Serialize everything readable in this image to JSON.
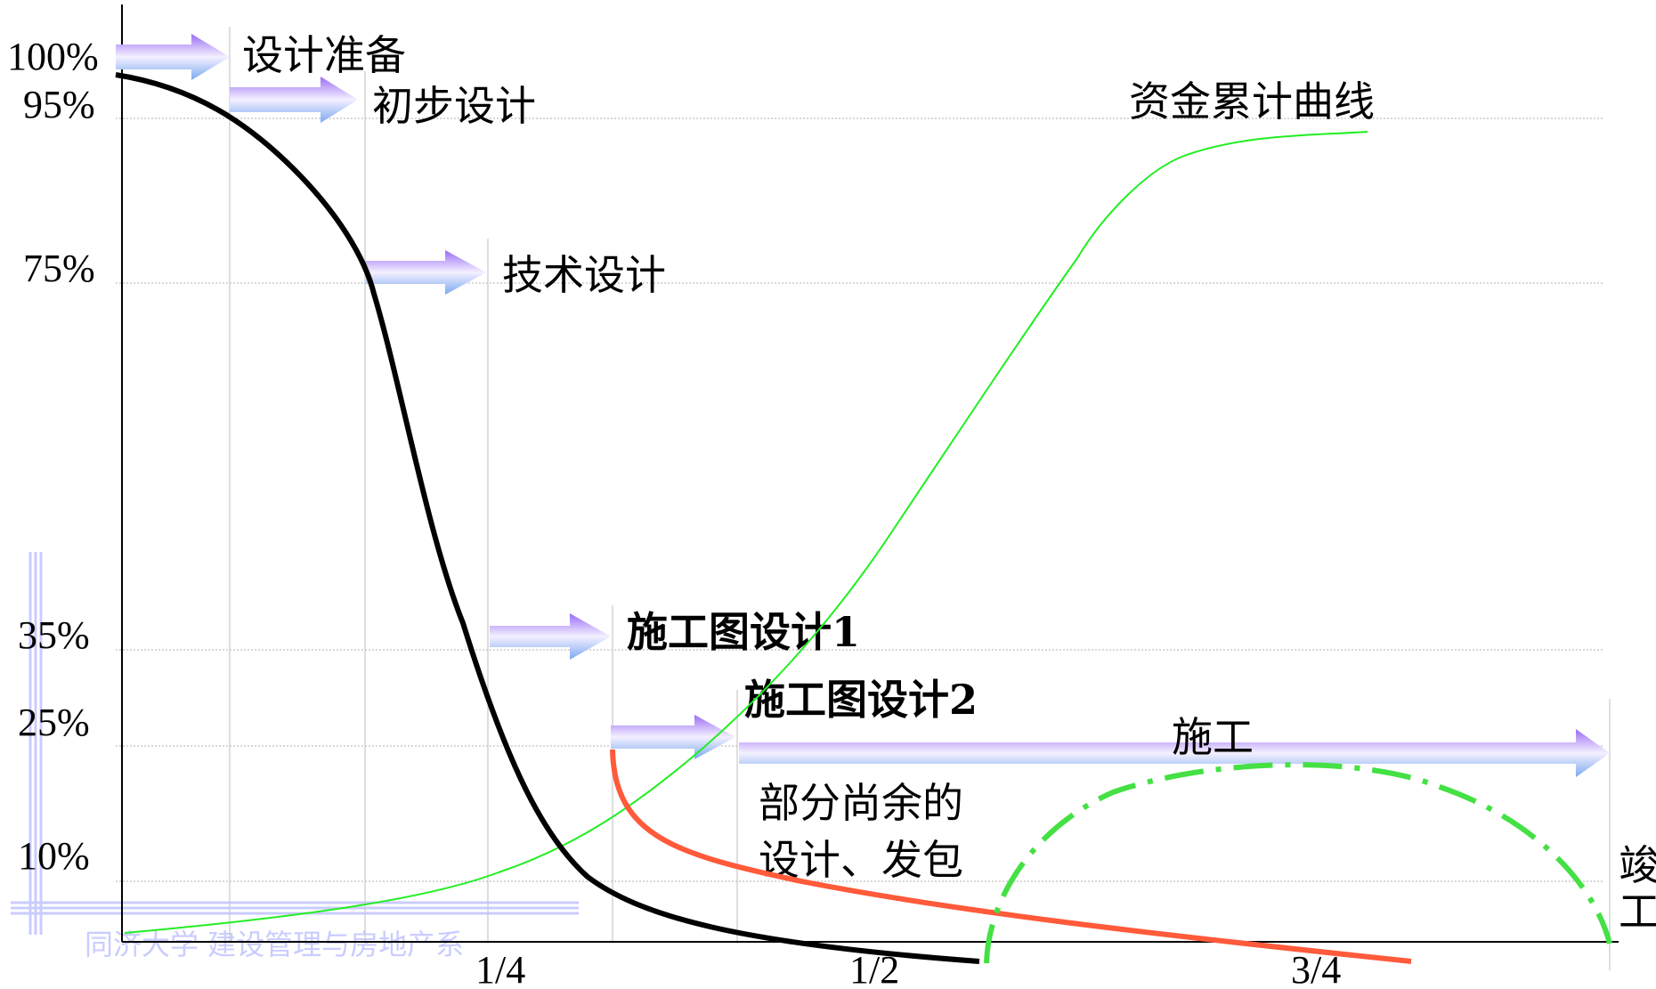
{
  "y_labels": {
    "p100": "100%",
    "p95": "95%",
    "p75": "75%",
    "p35": "35%",
    "p25": "25%",
    "p10": "10%"
  },
  "x_labels": {
    "q1": "1/4",
    "q2": "1/2",
    "q3": "3/4"
  },
  "stages": {
    "design_prep": "设计准备",
    "preliminary": "初步设计",
    "technical": "技术设计",
    "construction_drawing_1": "施工图设计1",
    "construction_drawing_2": "施工图设计2",
    "construction": "施工",
    "remaining_line1": "部分尚余的",
    "remaining_line2": "设计、发包",
    "completion_c1": "竣",
    "completion_c2": "工"
  },
  "curve_label": "资金累计曲线",
  "watermark": "同济大学 建设管理与房地产系",
  "colors": {
    "influence_curve": "#000000",
    "funds_curve": "#22ee22",
    "remaining_curve": "#ff5a3a",
    "completion_arc": "#44e044",
    "arrow_gradient_start": "#9a6cf5",
    "arrow_gradient_mid": "#ffffff",
    "arrow_gradient_end": "#7aa8f0",
    "gridline": "#b8b8b8",
    "watermark": "#c9ccff"
  }
}
